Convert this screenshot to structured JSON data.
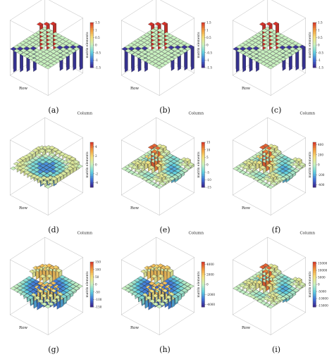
{
  "figure": {
    "panels": [
      {
        "label": "(a)",
        "column_axis": "Column",
        "row_axis": "Row",
        "cbar_title": "matrix elements",
        "cbar_ticks": [
          "1.5",
          "1",
          "0.5",
          "0",
          "-0.5",
          "-1",
          "-1.5"
        ],
        "cbar_range": [
          -1.5,
          1.5
        ],
        "pattern": "antidiagonal-peak"
      },
      {
        "label": "(b)",
        "column_axis": "Column",
        "row_axis": "Row",
        "cbar_title": "matrix elements",
        "cbar_ticks": [
          "1.5",
          "1",
          "0.5",
          "0",
          "-0.5",
          "-1",
          "-1.5"
        ],
        "cbar_range": [
          -1.5,
          1.5
        ],
        "pattern": "antidiagonal-peak"
      },
      {
        "label": "(c)",
        "column_axis": "Column",
        "row_axis": "Row",
        "cbar_title": "matrix elements",
        "cbar_ticks": [
          "1.5",
          "1",
          "0.5",
          "0",
          "-0.5",
          "-1",
          "-1.5"
        ],
        "cbar_range": [
          -1.5,
          1.5
        ],
        "pattern": "antidiagonal-peak"
      },
      {
        "label": "(d)",
        "column_axis": "Column",
        "row_axis": "Row",
        "cbar_title": "matrix elements",
        "cbar_ticks": [
          "4",
          "2",
          "0",
          "-2",
          "-4"
        ],
        "cbar_range": [
          -5,
          5
        ],
        "pattern": "ring"
      },
      {
        "label": "(e)",
        "column_axis": "Column",
        "row_axis": "Row",
        "cbar_title": "matrix elements",
        "cbar_ticks": [
          "15",
          "10",
          "5",
          "0",
          "-5",
          "-10",
          "-15"
        ],
        "cbar_range": [
          -15,
          15
        ],
        "pattern": "central-peak"
      },
      {
        "label": "(f)",
        "column_axis": "Column",
        "row_axis": "Row",
        "cbar_title": "matrix elements",
        "cbar_ticks": [
          "400",
          "200",
          "0",
          "-200",
          "-400"
        ],
        "cbar_range": [
          -450,
          450
        ],
        "pattern": "central-peak"
      },
      {
        "label": "(g)",
        "column_axis": "Column",
        "row_axis": "Row",
        "cbar_title": "matrix elements",
        "cbar_ticks": [
          "150",
          "100",
          "50",
          "0",
          "-50",
          "-100",
          "-150"
        ],
        "cbar_range": [
          -150,
          150
        ],
        "pattern": "quadrants"
      },
      {
        "label": "(h)",
        "column_axis": "Column",
        "row_axis": "Row",
        "cbar_title": "matrix elements",
        "cbar_ticks": [
          "4000",
          "2000",
          "0",
          "-2000",
          "-4000"
        ],
        "cbar_range": [
          -4500,
          4500
        ],
        "pattern": "quadrants"
      },
      {
        "label": "(i)",
        "column_axis": "Column",
        "row_axis": "Row",
        "cbar_title": "matrix elements",
        "cbar_ticks": [
          "15000",
          "10000",
          "5000",
          "0",
          "-5000",
          "-10000",
          "-15000"
        ],
        "cbar_range": [
          -16000,
          16000
        ],
        "pattern": "central-peak"
      }
    ]
  },
  "chart_data": {
    "type": "3d-bar",
    "grid_size": [
      11,
      11
    ],
    "colormap": [
      "#3a1e86",
      "#3e6fd9",
      "#5fd0e0",
      "#c8f2bf",
      "#f6e27a",
      "#f39a3c",
      "#d8322a"
    ],
    "panels": [
      "(a)",
      "(b)",
      "(c)",
      "(d)",
      "(e)",
      "(f)",
      "(g)",
      "(h)",
      "(i)"
    ]
  }
}
